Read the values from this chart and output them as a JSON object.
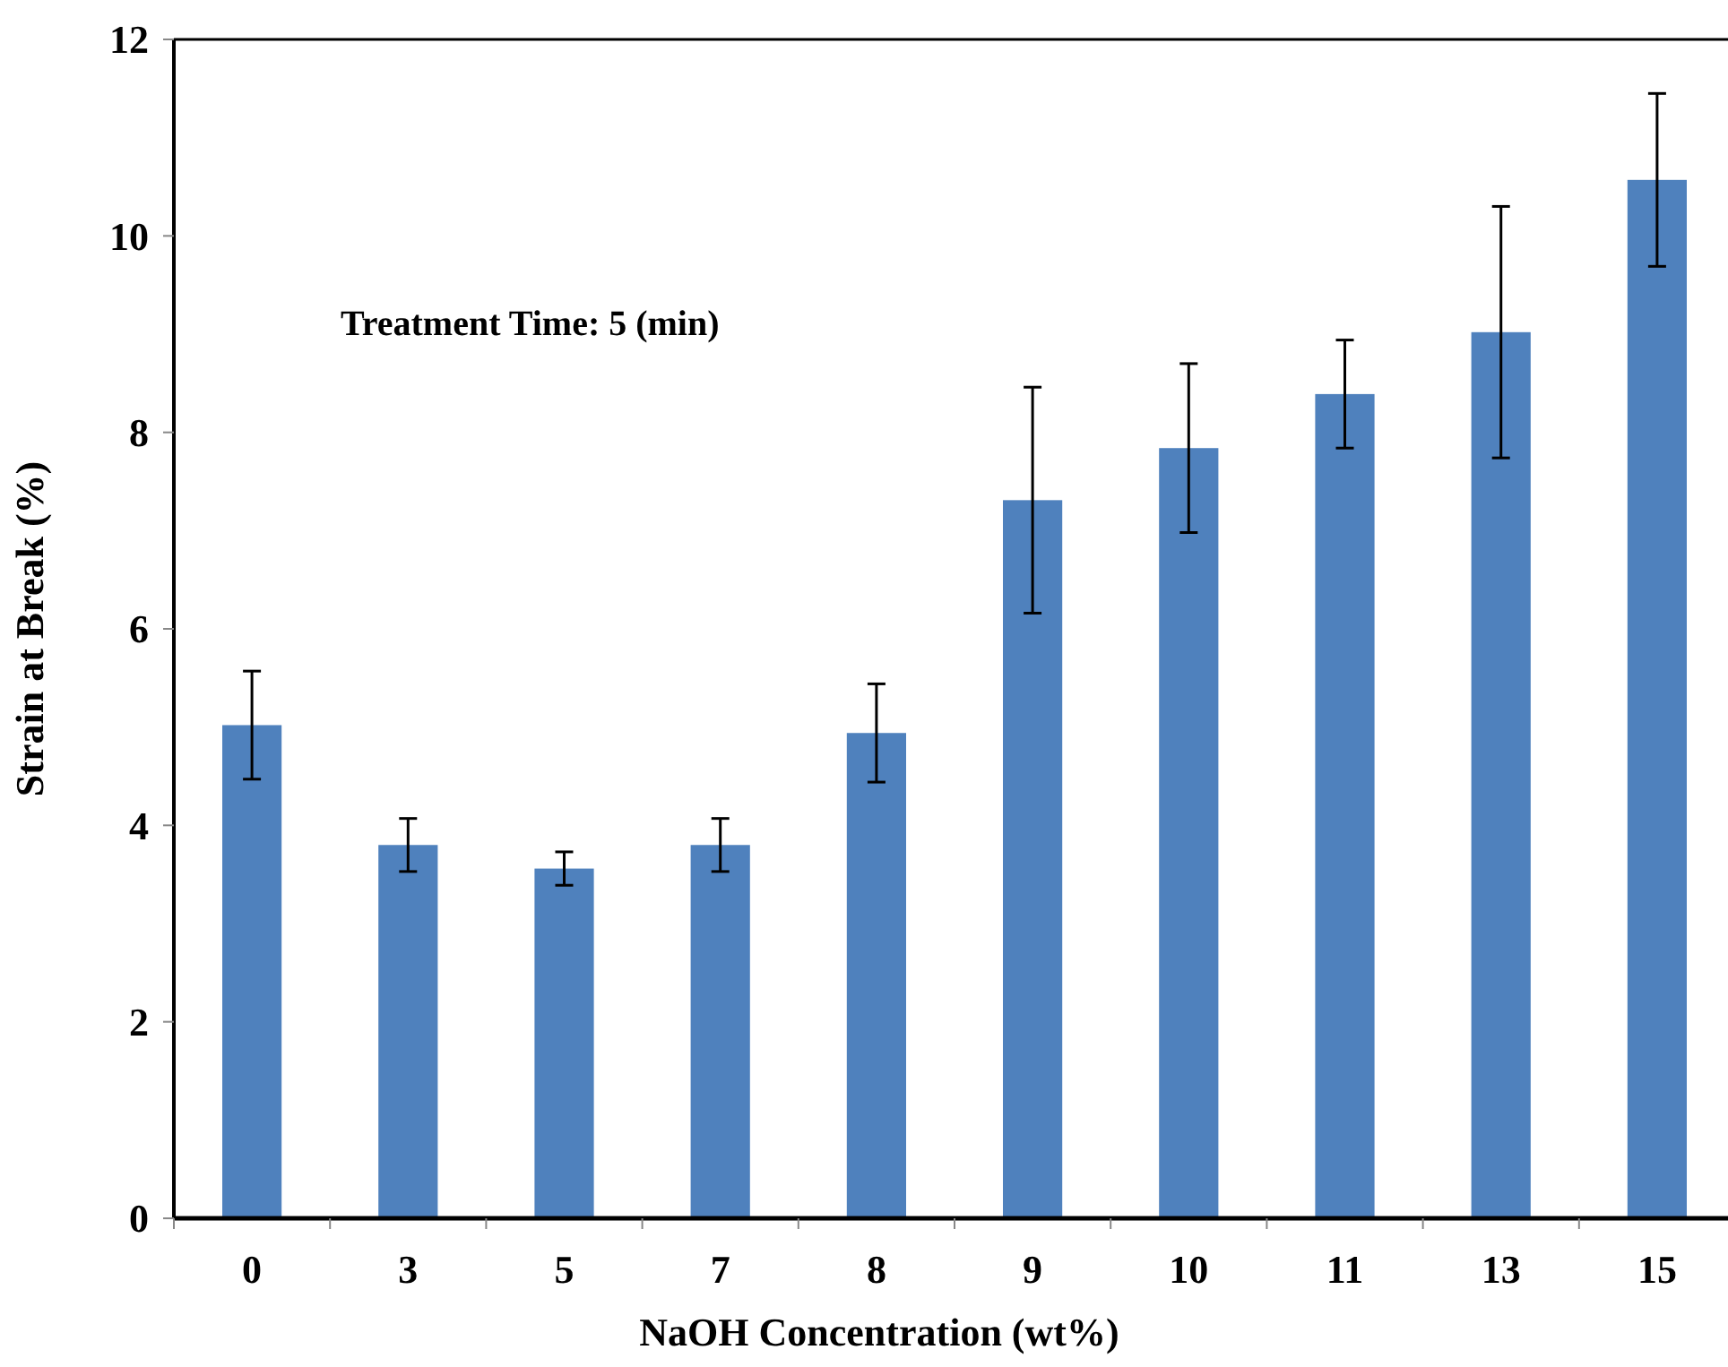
{
  "chart_data": {
    "type": "bar",
    "xlabel": "NaOH Concentration (wt%)",
    "ylabel": "Strain at Break (%)",
    "annotations": [
      "Treatment Time: 5 (min)"
    ],
    "categories": [
      "0",
      "3",
      "5",
      "7",
      "8",
      "9",
      "10",
      "11",
      "13",
      "15"
    ],
    "values": [
      5.02,
      3.8,
      3.56,
      3.8,
      4.94,
      7.31,
      7.84,
      8.39,
      9.02,
      10.57
    ],
    "errors": [
      0.55,
      0.27,
      0.17,
      0.27,
      0.5,
      1.15,
      0.86,
      0.55,
      1.28,
      0.88
    ],
    "color": "#4f81bd",
    "ylim": [
      0,
      12
    ],
    "yticks": [
      0,
      2,
      4,
      6,
      8,
      10,
      12
    ],
    "grid": false
  }
}
